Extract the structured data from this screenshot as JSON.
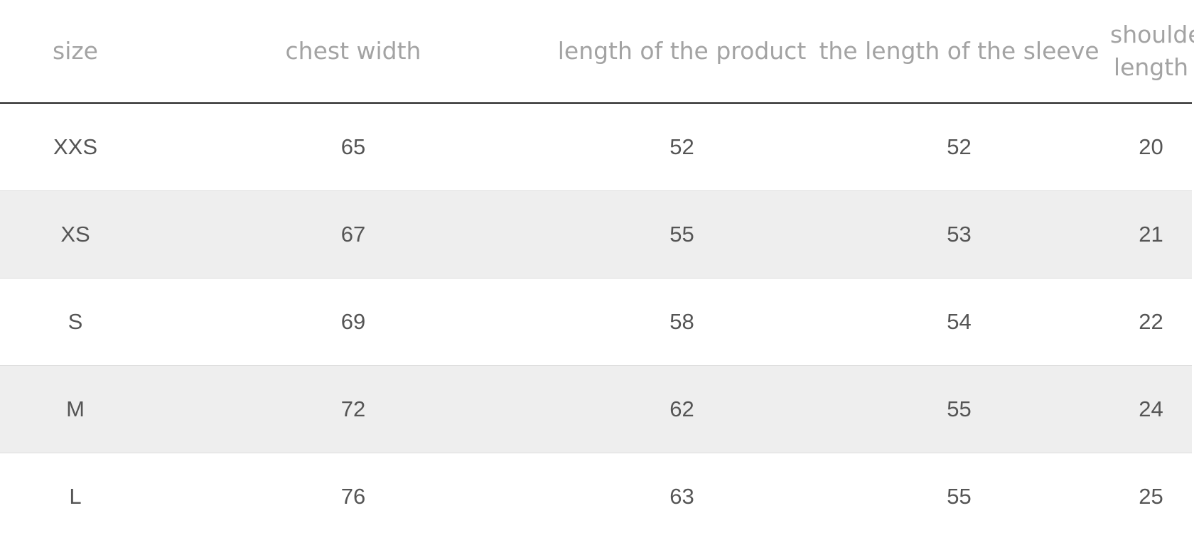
{
  "table": {
    "columns": [
      "size",
      "chest width",
      "length of the product",
      "the length of the sleeve",
      "shoulder length"
    ],
    "rows": [
      [
        "XXS",
        "65",
        "52",
        "52",
        "20"
      ],
      [
        "XS",
        "67",
        "55",
        "53",
        "21"
      ],
      [
        "S",
        "69",
        "58",
        "54",
        "22"
      ],
      [
        "M",
        "72",
        "62",
        "55",
        "24"
      ],
      [
        "L",
        "76",
        "63",
        "55",
        "25"
      ]
    ]
  },
  "colors": {
    "header_text": "#a3a3a3",
    "body_text": "#555555",
    "stripe": "#eeeeee",
    "header_rule": "#222222"
  }
}
